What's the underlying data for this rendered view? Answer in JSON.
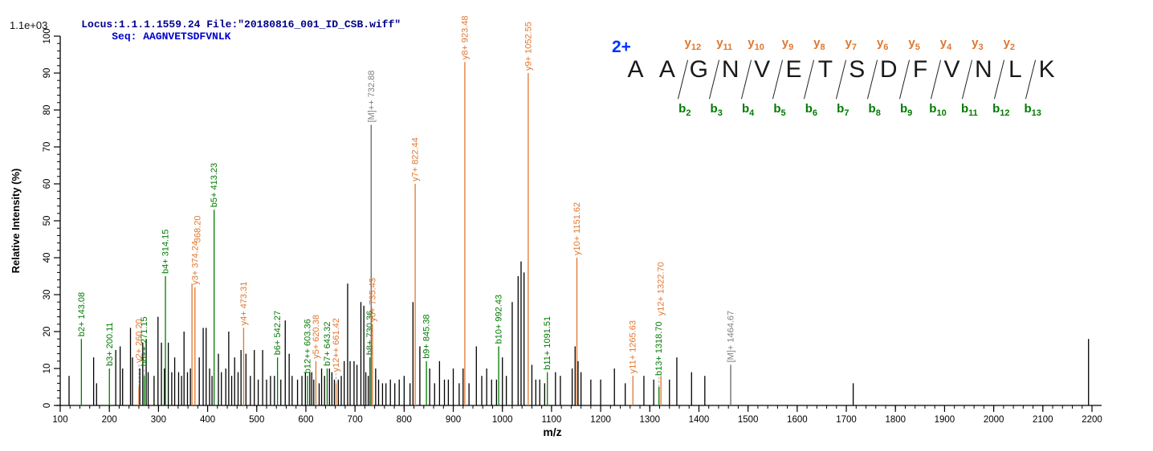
{
  "header": {
    "locus_file": "Locus:1.1.1.1559.24 File:\"20180816_001_ID_CSB.wiff\"",
    "seq_label": "Seq: AAGNVETSDFVNLK"
  },
  "peptide_panel": {
    "charge": "2+",
    "residues": [
      "A",
      "A",
      "G",
      "N",
      "V",
      "E",
      "T",
      "S",
      "D",
      "F",
      "V",
      "N",
      "L",
      "K"
    ],
    "y_ions": [
      "y12",
      "y11",
      "y10",
      "y9",
      "y8",
      "y7",
      "y6",
      "y5",
      "y4",
      "y3",
      "y2"
    ],
    "b_ions": [
      "b2",
      "b3",
      "b4",
      "b5",
      "b6",
      "b7",
      "b8",
      "b9",
      "b10",
      "b11",
      "b12",
      "b13"
    ]
  },
  "colors": {
    "b_ion": "#007b00",
    "y_ion": "#e0762f",
    "precursor_label": "#808080",
    "precursor_line": "#666666",
    "peak": "#000000",
    "header_text": "#00008b",
    "seq_text": "#0000cd",
    "charge_text": "#0033ff",
    "axis": "#000000",
    "leader": "#aaaaaa"
  },
  "chart_data": {
    "type": "bar",
    "title": "",
    "xlabel": "m/z",
    "ylabel": "Relative  Intensity (%)",
    "y_scale_note": "1.1e+03",
    "xlim": [
      100,
      2220
    ],
    "ylim": [
      0,
      100
    ],
    "x_major_tick_step": 100,
    "x_minor_tick_step": 20,
    "y_major_tick_step": 10,
    "y_minor_tick_step": 2,
    "x_ticks": [
      100,
      200,
      300,
      400,
      500,
      600,
      700,
      800,
      900,
      1000,
      1100,
      1200,
      1300,
      1400,
      1500,
      1600,
      1700,
      1800,
      1900,
      2000,
      2100,
      2200
    ],
    "y_ticks": [
      0,
      10,
      20,
      30,
      40,
      50,
      60,
      70,
      80,
      90,
      100
    ],
    "grid": false,
    "legend": "none",
    "labeled_peaks": [
      {
        "label": "b2+ 143.08",
        "mz": 143.08,
        "intensity": 18,
        "series": "b"
      },
      {
        "label": "b3+ 200.11",
        "mz": 200.11,
        "intensity": 10,
        "series": "b"
      },
      {
        "label": "y2+ 260.20",
        "mz": 260.2,
        "intensity": 5,
        "series": "y",
        "leader": 28
      },
      {
        "label": "b6++ 271.15",
        "mz": 271.15,
        "intensity": 8,
        "series": "b",
        "leader": 10
      },
      {
        "label": "b4+ 314.15",
        "mz": 314.15,
        "intensity": 35,
        "series": "b"
      },
      {
        "label": "368.20",
        "mz": 368.2,
        "intensity": 33,
        "series": "y",
        "label_dx": 7,
        "label_dy": -48
      },
      {
        "label": "y3+ 374.24",
        "mz": 374.24,
        "intensity": 32,
        "series": "y"
      },
      {
        "label": "b5+ 413.23",
        "mz": 413.23,
        "intensity": 53,
        "series": "b"
      },
      {
        "label": "y4+ 473.31",
        "mz": 473.31,
        "intensity": 21,
        "series": "y"
      },
      {
        "label": "b6+ 542.27",
        "mz": 542.27,
        "intensity": 13,
        "series": "b"
      },
      {
        "label": "b12++ 603.36",
        "mz": 603.36,
        "intensity": 8,
        "series": "b"
      },
      {
        "label": "y5+ 620.38",
        "mz": 620.38,
        "intensity": 12,
        "series": "y"
      },
      {
        "label": "b7+ 643.32",
        "mz": 643.32,
        "intensity": 10,
        "series": "b"
      },
      {
        "label": "y12++ 661.42",
        "mz": 661.42,
        "intensity": 6,
        "series": "y",
        "leader": 12
      },
      {
        "label": "b8+ 730.36",
        "mz": 730.36,
        "intensity": 13,
        "series": "b"
      },
      {
        "label": "[M]++ 732.88",
        "mz": 732.88,
        "intensity": 76,
        "series": "M"
      },
      {
        "label": "y6+ 735.43",
        "mz": 735.43,
        "intensity": 22,
        "series": "y"
      },
      {
        "label": "y7+ 822.44",
        "mz": 822.44,
        "intensity": 60,
        "series": "y"
      },
      {
        "label": "b9+ 845.38",
        "mz": 845.38,
        "intensity": 12,
        "series": "b"
      },
      {
        "label": "y8+ 923.48",
        "mz": 923.48,
        "intensity": 93,
        "series": "y"
      },
      {
        "label": "b10+ 992.43",
        "mz": 992.43,
        "intensity": 16,
        "series": "b"
      },
      {
        "label": "y9+ 1052.55",
        "mz": 1052.55,
        "intensity": 90,
        "series": "y"
      },
      {
        "label": "b11+ 1091.51",
        "mz": 1091.51,
        "intensity": 9,
        "series": "b"
      },
      {
        "label": "y10+ 1151.62",
        "mz": 1151.62,
        "intensity": 40,
        "series": "y"
      },
      {
        "label": "y11+ 1265.63",
        "mz": 1265.63,
        "intensity": 8,
        "series": "y"
      },
      {
        "label": "b13+ 1318.70",
        "mz": 1318.7,
        "intensity": 5,
        "series": "b",
        "leader": 12
      },
      {
        "label": "y12+ 1322.70",
        "mz": 1322.7,
        "intensity": 8,
        "series": "y",
        "label_dy": -72
      },
      {
        "label": "[M]+ 1464.67",
        "mz": 1464.67,
        "intensity": 11,
        "series": "M"
      }
    ],
    "unlabeled_peaks": [
      [
        118,
        8
      ],
      [
        168,
        13
      ],
      [
        174,
        6
      ],
      [
        213,
        15
      ],
      [
        222,
        16
      ],
      [
        227,
        10
      ],
      [
        243,
        21
      ],
      [
        247,
        13
      ],
      [
        262,
        10
      ],
      [
        268,
        17
      ],
      [
        275,
        18
      ],
      [
        279,
        9
      ],
      [
        291,
        8
      ],
      [
        299,
        24
      ],
      [
        306,
        17
      ],
      [
        312,
        10
      ],
      [
        320,
        17
      ],
      [
        327,
        9
      ],
      [
        333,
        13
      ],
      [
        341,
        9
      ],
      [
        347,
        8
      ],
      [
        352,
        20
      ],
      [
        359,
        9
      ],
      [
        365,
        10
      ],
      [
        383,
        13
      ],
      [
        391,
        21
      ],
      [
        397,
        21
      ],
      [
        404,
        10
      ],
      [
        409,
        8
      ],
      [
        422,
        14
      ],
      [
        428,
        9
      ],
      [
        437,
        10
      ],
      [
        443,
        20
      ],
      [
        449,
        8
      ],
      [
        455,
        13
      ],
      [
        462,
        9
      ],
      [
        468,
        15
      ],
      [
        478,
        14
      ],
      [
        487,
        8
      ],
      [
        495,
        15
      ],
      [
        503,
        7
      ],
      [
        512,
        15
      ],
      [
        520,
        7
      ],
      [
        528,
        8
      ],
      [
        536,
        8
      ],
      [
        549,
        7
      ],
      [
        558,
        23
      ],
      [
        566,
        14
      ],
      [
        572,
        8
      ],
      [
        583,
        7
      ],
      [
        592,
        8
      ],
      [
        599,
        9
      ],
      [
        608,
        9
      ],
      [
        612,
        9
      ],
      [
        616,
        7
      ],
      [
        627,
        6
      ],
      [
        632,
        10
      ],
      [
        638,
        8
      ],
      [
        648,
        10
      ],
      [
        653,
        9
      ],
      [
        658,
        7
      ],
      [
        666,
        7
      ],
      [
        672,
        8
      ],
      [
        678,
        12
      ],
      [
        685,
        33
      ],
      [
        690,
        12
      ],
      [
        698,
        12
      ],
      [
        704,
        11
      ],
      [
        712,
        28
      ],
      [
        718,
        27
      ],
      [
        722,
        9
      ],
      [
        727,
        8
      ],
      [
        742,
        10
      ],
      [
        748,
        7
      ],
      [
        756,
        6
      ],
      [
        763,
        6
      ],
      [
        772,
        7
      ],
      [
        781,
        6
      ],
      [
        790,
        7
      ],
      [
        800,
        8
      ],
      [
        812,
        6
      ],
      [
        818,
        28
      ],
      [
        832,
        16
      ],
      [
        852,
        10
      ],
      [
        862,
        6
      ],
      [
        872,
        12
      ],
      [
        882,
        7
      ],
      [
        890,
        7
      ],
      [
        900,
        10
      ],
      [
        912,
        6
      ],
      [
        920,
        10
      ],
      [
        932,
        6
      ],
      [
        947,
        16
      ],
      [
        958,
        8
      ],
      [
        968,
        10
      ],
      [
        978,
        7
      ],
      [
        988,
        7
      ],
      [
        1000,
        13
      ],
      [
        1008,
        8
      ],
      [
        1020,
        28
      ],
      [
        1032,
        35
      ],
      [
        1038,
        39
      ],
      [
        1044,
        36
      ],
      [
        1060,
        11
      ],
      [
        1068,
        7
      ],
      [
        1076,
        7
      ],
      [
        1086,
        6
      ],
      [
        1108,
        9
      ],
      [
        1118,
        8
      ],
      [
        1142,
        10
      ],
      [
        1148,
        16
      ],
      [
        1154,
        12
      ],
      [
        1160,
        9
      ],
      [
        1180,
        7
      ],
      [
        1200,
        7
      ],
      [
        1228,
        10
      ],
      [
        1250,
        6
      ],
      [
        1288,
        8
      ],
      [
        1308,
        7
      ],
      [
        1340,
        7
      ],
      [
        1355,
        13
      ],
      [
        1385,
        9
      ],
      [
        1412,
        8
      ],
      [
        1714,
        6
      ],
      [
        2193,
        18
      ]
    ]
  }
}
